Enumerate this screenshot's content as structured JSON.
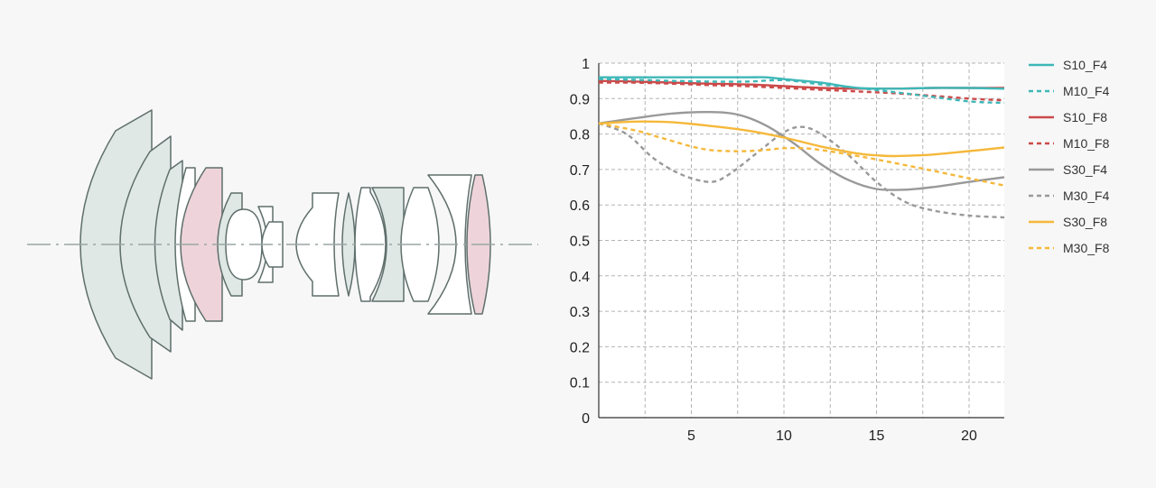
{
  "lens_diagram": {
    "colors": {
      "outline": "#5f6f6c",
      "green_fill": "#dfe8e5",
      "pink_fill": "#eed4da",
      "white_fill": "#ffffff",
      "axis": "#9aa6a4"
    }
  },
  "chart_data": {
    "type": "line",
    "title": "",
    "xlabel": "",
    "ylabel": "",
    "xlim": [
      0,
      21.9
    ],
    "ylim": [
      0,
      1
    ],
    "x_ticks": [
      5,
      10,
      15,
      20
    ],
    "x_tick_labels": [
      "5",
      "10",
      "15",
      "20"
    ],
    "y_ticks": [
      0,
      0.1,
      0.2,
      0.3,
      0.4,
      0.5,
      0.6,
      0.7,
      0.8,
      0.9,
      1
    ],
    "y_tick_labels": [
      "0",
      "0.1",
      "0.2",
      "0.3",
      "0.4",
      "0.5",
      "0.6",
      "0.7",
      "0.8",
      "0.9",
      "1"
    ],
    "grid": true,
    "legend_position": "right",
    "series": [
      {
        "name": "S10_F4",
        "color": "#3fb7b7",
        "dashed": false,
        "x": [
          0,
          2,
          4,
          6,
          8,
          9,
          10,
          12,
          14,
          16,
          18,
          20,
          21.9
        ],
        "y": [
          0.96,
          0.96,
          0.96,
          0.96,
          0.96,
          0.96,
          0.955,
          0.945,
          0.93,
          0.928,
          0.93,
          0.93,
          0.928
        ]
      },
      {
        "name": "M10_F4",
        "color": "#3fb7b7",
        "dashed": true,
        "x": [
          0,
          2,
          4,
          6,
          8,
          10,
          12,
          14,
          16,
          18,
          20,
          21.9
        ],
        "y": [
          0.955,
          0.953,
          0.95,
          0.948,
          0.948,
          0.952,
          0.94,
          0.93,
          0.918,
          0.905,
          0.892,
          0.888
        ]
      },
      {
        "name": "S10_F8",
        "color": "#cc4a4a",
        "dashed": false,
        "x": [
          0,
          2,
          4,
          6,
          8,
          10,
          12,
          14,
          16,
          18,
          20,
          21.9
        ],
        "y": [
          0.95,
          0.948,
          0.945,
          0.942,
          0.94,
          0.935,
          0.93,
          0.928,
          0.928,
          0.93,
          0.93,
          0.93
        ]
      },
      {
        "name": "M10_F8",
        "color": "#cc4a4a",
        "dashed": true,
        "x": [
          0,
          2,
          4,
          6,
          8,
          10,
          12,
          14,
          16,
          18,
          20,
          21.9
        ],
        "y": [
          0.945,
          0.945,
          0.942,
          0.938,
          0.935,
          0.93,
          0.925,
          0.92,
          0.915,
          0.908,
          0.9,
          0.895
        ]
      },
      {
        "name": "S30_F4",
        "color": "#999999",
        "dashed": false,
        "x": [
          0,
          2,
          4,
          6,
          7.5,
          9,
          10.5,
          12,
          13.5,
          15,
          16.5,
          18,
          20,
          21.9
        ],
        "y": [
          0.83,
          0.845,
          0.858,
          0.862,
          0.855,
          0.825,
          0.775,
          0.715,
          0.67,
          0.645,
          0.643,
          0.65,
          0.665,
          0.678
        ]
      },
      {
        "name": "M30_F4",
        "color": "#999999",
        "dashed": true,
        "x": [
          0,
          1.5,
          3,
          4.5,
          6,
          7,
          8.5,
          10,
          11,
          12,
          13.5,
          15,
          16.5,
          18,
          20,
          21.9
        ],
        "y": [
          0.83,
          0.8,
          0.73,
          0.685,
          0.665,
          0.685,
          0.745,
          0.805,
          0.82,
          0.8,
          0.74,
          0.665,
          0.61,
          0.585,
          0.57,
          0.565
        ]
      },
      {
        "name": "S30_F8",
        "color": "#f5b83a",
        "dashed": false,
        "x": [
          0,
          2,
          4,
          6,
          8,
          10,
          12,
          14,
          15,
          16,
          18,
          20,
          21.9
        ],
        "y": [
          0.83,
          0.835,
          0.833,
          0.823,
          0.81,
          0.79,
          0.765,
          0.745,
          0.74,
          0.738,
          0.742,
          0.752,
          0.762
        ]
      },
      {
        "name": "M30_F8",
        "color": "#f5b83a",
        "dashed": true,
        "x": [
          0,
          2,
          3,
          4,
          5,
          6,
          7,
          8,
          9,
          10,
          11,
          12,
          14,
          16,
          18,
          20,
          21.9
        ],
        "y": [
          0.83,
          0.81,
          0.795,
          0.78,
          0.765,
          0.755,
          0.752,
          0.752,
          0.755,
          0.76,
          0.76,
          0.755,
          0.738,
          0.718,
          0.697,
          0.675,
          0.655
        ]
      }
    ]
  }
}
